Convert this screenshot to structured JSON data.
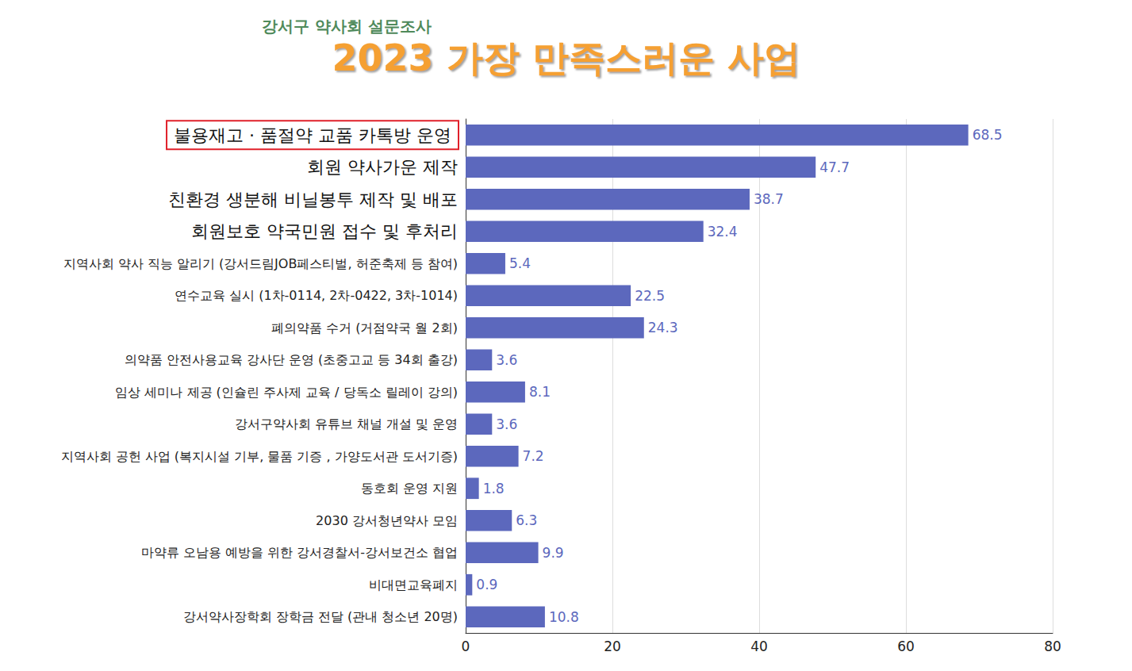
{
  "chart_data": {
    "type": "bar",
    "orientation": "horizontal",
    "subtitle": "강서구 약사회 설문조사",
    "title": "2023 가장 만족스러운 사업",
    "categories": [
      "불용재고 · 품절약 교품 카톡방 운영",
      "회원 약사가운 제작",
      "친환경 생분해 비닐봉투 제작 및 배포",
      "회원보호 약국민원 접수 및 후처리",
      "지역사회 약사 직능 알리기 (강서드림JOB페스티벌, 허준축제 등 참여)",
      "연수교육 실시 (1차-0114, 2차-0422, 3차-1014)",
      "폐의약품 수거 (거점약국 월 2회)",
      "의약품 안전사용교육 강사단 운영 (초중고교 등 34회 출강)",
      "임상 세미나 제공 (인슐린 주사제 교육 / 당독소 릴레이 강의)",
      "강서구약사회 유튜브 채널 개설 및 운영",
      "지역사회 공헌 사업 (복지시설 기부, 물품 기증 , 가양도서관 도서기증)",
      "동호회 운영 지원",
      "2030 강서청년약사 모임",
      "마약류 오남용 예방을 위한 강서경찰서-강서보건소 협업",
      "비대면교육폐지",
      "강서약사장학회 장학금 전달 (관내 청소년 20명)"
    ],
    "values": [
      68.5,
      47.7,
      38.7,
      32.4,
      5.4,
      22.5,
      24.3,
      3.6,
      8.1,
      3.6,
      7.2,
      1.8,
      6.3,
      9.9,
      0.9,
      10.8
    ],
    "color": "#5c68bd",
    "xlim": [
      0,
      80
    ],
    "xticks": [
      0,
      20,
      40,
      60,
      80
    ],
    "grid": true,
    "data_labels": true
  }
}
